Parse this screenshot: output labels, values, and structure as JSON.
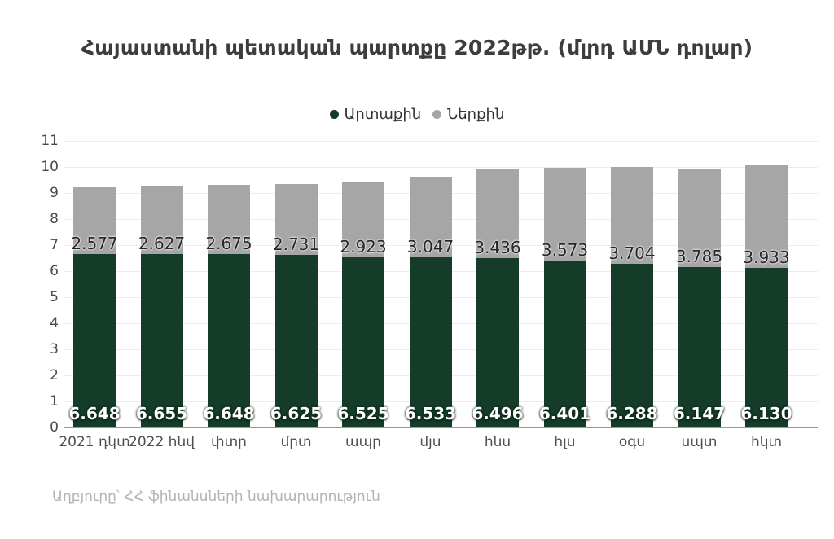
{
  "chart_data": {
    "type": "bar",
    "stacked": true,
    "title": "Հայաստանի պետական պարտքը 2022թթ. (մլրդ ԱՄՆ դոլար)",
    "source": "Աղբյուրը՝ ՀՀ ֆինանսների նախարարություն",
    "categories": [
      "2021 դկտ",
      "2022 հնվ",
      "փտր",
      "մրտ",
      "ապր",
      "մյս",
      "հնս",
      "հլս",
      "օգս",
      "սպտ",
      "հկտ"
    ],
    "series": [
      {
        "name": "Արտաքին",
        "color": "#143c28",
        "values": [
          6.648,
          6.655,
          6.648,
          6.625,
          6.525,
          6.533,
          6.496,
          6.401,
          6.288,
          6.147,
          6.13
        ]
      },
      {
        "name": "Ներքին",
        "color": "#a6a6a6",
        "values": [
          2.577,
          2.627,
          2.675,
          2.731,
          2.923,
          3.047,
          3.436,
          3.573,
          3.704,
          3.785,
          3.933
        ]
      }
    ],
    "xlabel": "",
    "ylabel": "",
    "ylim": [
      0,
      11
    ],
    "yticks": [
      0,
      1,
      2,
      3,
      4,
      5,
      6,
      7,
      8,
      9,
      10,
      11
    ],
    "grid": true,
    "legend_position": "top",
    "value_label_decimals": 3,
    "colors": {
      "grid": "#ededed",
      "axis": "#9a9a9a",
      "tick_text": "#4a4a4a",
      "title_text": "#3d3d3d",
      "source_text": "#b3b3b3"
    }
  }
}
